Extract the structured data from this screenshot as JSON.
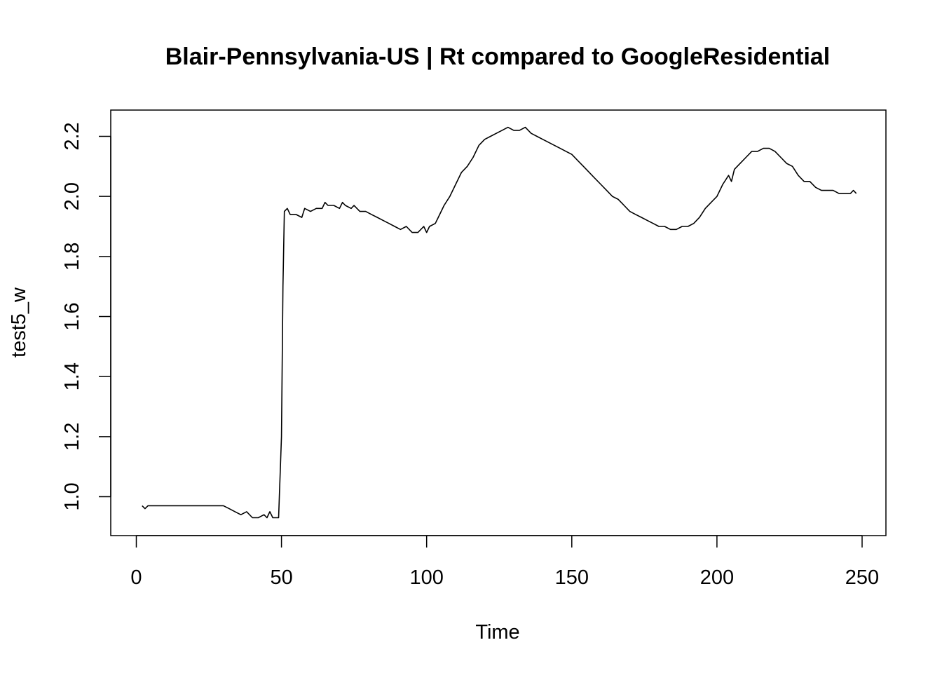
{
  "chart_data": {
    "type": "line",
    "title": "Blair-Pennsylvania-US | Rt compared to GoogleResidential",
    "xlabel": "Time",
    "ylabel": "test5_w",
    "xlim": [
      0,
      250
    ],
    "ylim": [
      0.9,
      2.25
    ],
    "x_ticks": [
      0,
      50,
      100,
      150,
      200,
      250
    ],
    "x_tick_labels": [
      "0",
      "50",
      "100",
      "150",
      "200",
      "250"
    ],
    "y_ticks": [
      1.0,
      1.2,
      1.4,
      1.6,
      1.8,
      2.0,
      2.2
    ],
    "y_tick_labels": [
      "1.0",
      "1.2",
      "1.4",
      "1.6",
      "1.8",
      "2.0",
      "2.2"
    ],
    "grid": false,
    "legend": "none",
    "series": [
      {
        "color": "#000000",
        "points": [
          [
            2,
            0.97
          ],
          [
            3,
            0.96
          ],
          [
            4,
            0.97
          ],
          [
            6,
            0.97
          ],
          [
            8,
            0.97
          ],
          [
            10,
            0.97
          ],
          [
            12,
            0.97
          ],
          [
            14,
            0.97
          ],
          [
            16,
            0.97
          ],
          [
            18,
            0.97
          ],
          [
            20,
            0.97
          ],
          [
            22,
            0.97
          ],
          [
            24,
            0.97
          ],
          [
            26,
            0.97
          ],
          [
            28,
            0.97
          ],
          [
            30,
            0.97
          ],
          [
            32,
            0.96
          ],
          [
            34,
            0.95
          ],
          [
            36,
            0.94
          ],
          [
            38,
            0.95
          ],
          [
            40,
            0.93
          ],
          [
            42,
            0.93
          ],
          [
            44,
            0.94
          ],
          [
            45,
            0.93
          ],
          [
            46,
            0.95
          ],
          [
            47,
            0.93
          ],
          [
            48,
            0.93
          ],
          [
            49,
            0.93
          ],
          [
            50,
            1.2
          ],
          [
            50.5,
            1.7
          ],
          [
            51,
            1.95
          ],
          [
            52,
            1.96
          ],
          [
            53,
            1.94
          ],
          [
            55,
            1.94
          ],
          [
            57,
            1.93
          ],
          [
            58,
            1.96
          ],
          [
            60,
            1.95
          ],
          [
            62,
            1.96
          ],
          [
            64,
            1.96
          ],
          [
            65,
            1.98
          ],
          [
            66,
            1.97
          ],
          [
            68,
            1.97
          ],
          [
            70,
            1.96
          ],
          [
            71,
            1.98
          ],
          [
            72,
            1.97
          ],
          [
            74,
            1.96
          ],
          [
            75,
            1.97
          ],
          [
            77,
            1.95
          ],
          [
            79,
            1.95
          ],
          [
            81,
            1.94
          ],
          [
            83,
            1.93
          ],
          [
            85,
            1.92
          ],
          [
            87,
            1.91
          ],
          [
            89,
            1.9
          ],
          [
            91,
            1.89
          ],
          [
            93,
            1.9
          ],
          [
            95,
            1.88
          ],
          [
            97,
            1.88
          ],
          [
            99,
            1.9
          ],
          [
            100,
            1.88
          ],
          [
            101,
            1.9
          ],
          [
            103,
            1.91
          ],
          [
            104,
            1.93
          ],
          [
            106,
            1.97
          ],
          [
            108,
            2.0
          ],
          [
            110,
            2.04
          ],
          [
            112,
            2.08
          ],
          [
            114,
            2.1
          ],
          [
            116,
            2.13
          ],
          [
            118,
            2.17
          ],
          [
            120,
            2.19
          ],
          [
            122,
            2.2
          ],
          [
            124,
            2.21
          ],
          [
            126,
            2.22
          ],
          [
            128,
            2.23
          ],
          [
            130,
            2.22
          ],
          [
            132,
            2.22
          ],
          [
            134,
            2.23
          ],
          [
            136,
            2.21
          ],
          [
            138,
            2.2
          ],
          [
            140,
            2.19
          ],
          [
            142,
            2.18
          ],
          [
            144,
            2.17
          ],
          [
            146,
            2.16
          ],
          [
            148,
            2.15
          ],
          [
            150,
            2.14
          ],
          [
            152,
            2.12
          ],
          [
            154,
            2.1
          ],
          [
            156,
            2.08
          ],
          [
            158,
            2.06
          ],
          [
            160,
            2.04
          ],
          [
            162,
            2.02
          ],
          [
            164,
            2.0
          ],
          [
            166,
            1.99
          ],
          [
            168,
            1.97
          ],
          [
            170,
            1.95
          ],
          [
            172,
            1.94
          ],
          [
            174,
            1.93
          ],
          [
            176,
            1.92
          ],
          [
            178,
            1.91
          ],
          [
            180,
            1.9
          ],
          [
            182,
            1.9
          ],
          [
            184,
            1.89
          ],
          [
            186,
            1.89
          ],
          [
            188,
            1.9
          ],
          [
            190,
            1.9
          ],
          [
            192,
            1.91
          ],
          [
            194,
            1.93
          ],
          [
            196,
            1.96
          ],
          [
            198,
            1.98
          ],
          [
            200,
            2.0
          ],
          [
            202,
            2.04
          ],
          [
            204,
            2.07
          ],
          [
            205,
            2.05
          ],
          [
            206,
            2.09
          ],
          [
            208,
            2.11
          ],
          [
            210,
            2.13
          ],
          [
            212,
            2.15
          ],
          [
            214,
            2.15
          ],
          [
            216,
            2.16
          ],
          [
            218,
            2.16
          ],
          [
            220,
            2.15
          ],
          [
            222,
            2.13
          ],
          [
            224,
            2.11
          ],
          [
            226,
            2.1
          ],
          [
            228,
            2.07
          ],
          [
            230,
            2.05
          ],
          [
            232,
            2.05
          ],
          [
            234,
            2.03
          ],
          [
            236,
            2.02
          ],
          [
            238,
            2.02
          ],
          [
            240,
            2.02
          ],
          [
            242,
            2.01
          ],
          [
            244,
            2.01
          ],
          [
            246,
            2.01
          ],
          [
            247,
            2.02
          ],
          [
            248,
            2.01
          ]
        ]
      }
    ]
  }
}
